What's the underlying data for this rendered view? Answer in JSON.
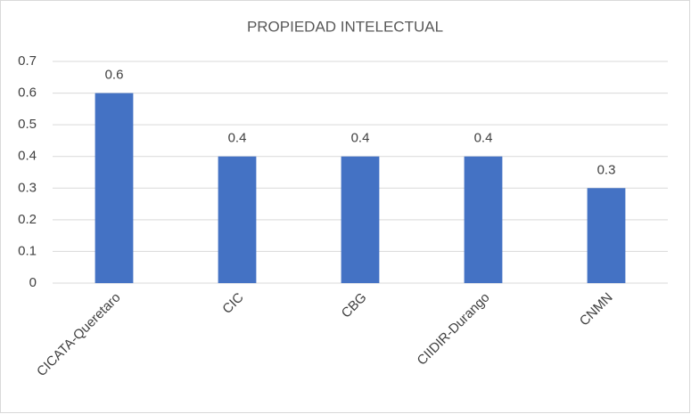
{
  "chart_data": {
    "type": "bar",
    "title": "PROPIEDAD INTELECTUAL",
    "categories": [
      "CICATA-Queretaro",
      "CIC",
      "CBG",
      "CIIDIR-Durango",
      "CNMN"
    ],
    "values": [
      0.6,
      0.4,
      0.4,
      0.4,
      0.3
    ],
    "color": "#4472c4",
    "ylim": [
      0,
      0.7
    ],
    "yticks": [
      0,
      0.1,
      0.2,
      0.3,
      0.4,
      0.5,
      0.6,
      0.7
    ],
    "grid": true
  }
}
